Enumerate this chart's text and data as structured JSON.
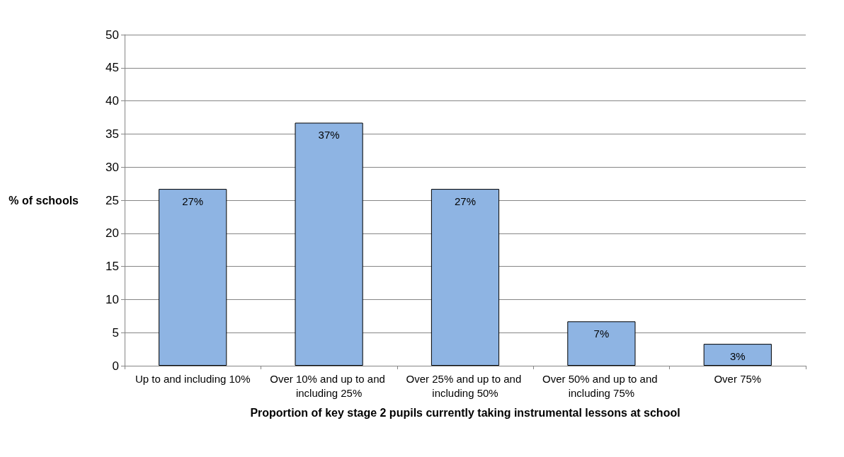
{
  "chart_data": {
    "type": "bar",
    "xlabel": "Proportion of key stage 2 pupils currently taking instrumental lessons at school",
    "ylabel": "% of schools",
    "categories": [
      "Up to and including 10%",
      "Over 10% and up to and including 25%",
      "Over 25% and up to and including 50%",
      "Over 50% and up to and including 75%",
      "Over 75%"
    ],
    "values": [
      26.7,
      36.7,
      26.7,
      6.7,
      3.3
    ],
    "value_labels": [
      "27%",
      "37%",
      "27%",
      "7%",
      "3%"
    ],
    "color": "#8eb4e3",
    "ylim": [
      0,
      50
    ],
    "yticks": [
      0,
      5,
      10,
      15,
      20,
      25,
      30,
      35,
      40,
      45,
      50
    ],
    "grid": "y"
  }
}
